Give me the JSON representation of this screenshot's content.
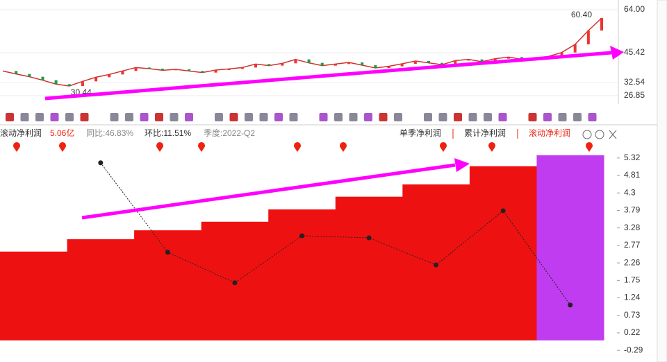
{
  "chart_data": [
    {
      "type": "line",
      "color": "#d0312d",
      "values": [
        37.5,
        36.2,
        35.0,
        33.5,
        31.8,
        31.0,
        33.0,
        34.8,
        36.0,
        37.5,
        39.0,
        38.5,
        37.8,
        38.2,
        37.5,
        36.8,
        37.9,
        38.4,
        39.0,
        40.5,
        39.8,
        40.8,
        42.5,
        41.0,
        39.8,
        40.5,
        41.2,
        40.0,
        38.8,
        39.5,
        40.6,
        41.8,
        41.0,
        40.2,
        42.0,
        42.5,
        41.5,
        42.8,
        43.5,
        42.6,
        43.0,
        43.8,
        45.5,
        49.0,
        55.0,
        60.4
      ],
      "ylim": [
        23.2,
        68.2
      ],
      "yticks": [
        {
          "value": 64,
          "label": "64.00"
        },
        45.42,
        32.54,
        26.85
      ],
      "annotations": [
        "60.40",
        "30.44"
      ]
    },
    {
      "type": "step",
      "title": "滚动净利润",
      "headline": "5.06亿",
      "yoy": "同比:46.83%",
      "qoq": "环比:11.51%",
      "period": "季度:2022-Q2",
      "tabs": [
        "单季净利润",
        "累计净利润",
        "滚动净利润"
      ],
      "values": [
        2.59,
        2.95,
        3.21,
        3.46,
        3.82,
        4.19,
        4.55,
        5.08,
        5.4
      ],
      "colors": [
        "#ee1111",
        "#ee1111",
        "#ee1111",
        "#ee1111",
        "#ee1111",
        "#ee1111",
        "#ee1111",
        "#ee1111",
        "#c03cf0"
      ],
      "line": {
        "color": "#222222",
        "values": [
          null,
          5.18,
          2.57,
          1.68,
          3.05,
          2.99,
          2.2,
          3.78,
          1.03
        ]
      },
      "ylim": [
        -0.59,
        5.68
      ],
      "yticks": [
        5.32,
        4.81,
        4.3,
        3.79,
        3.28,
        2.77,
        2.26,
        1.75,
        1.24,
        0.73,
        0.22,
        -0.29
      ]
    }
  ]
}
